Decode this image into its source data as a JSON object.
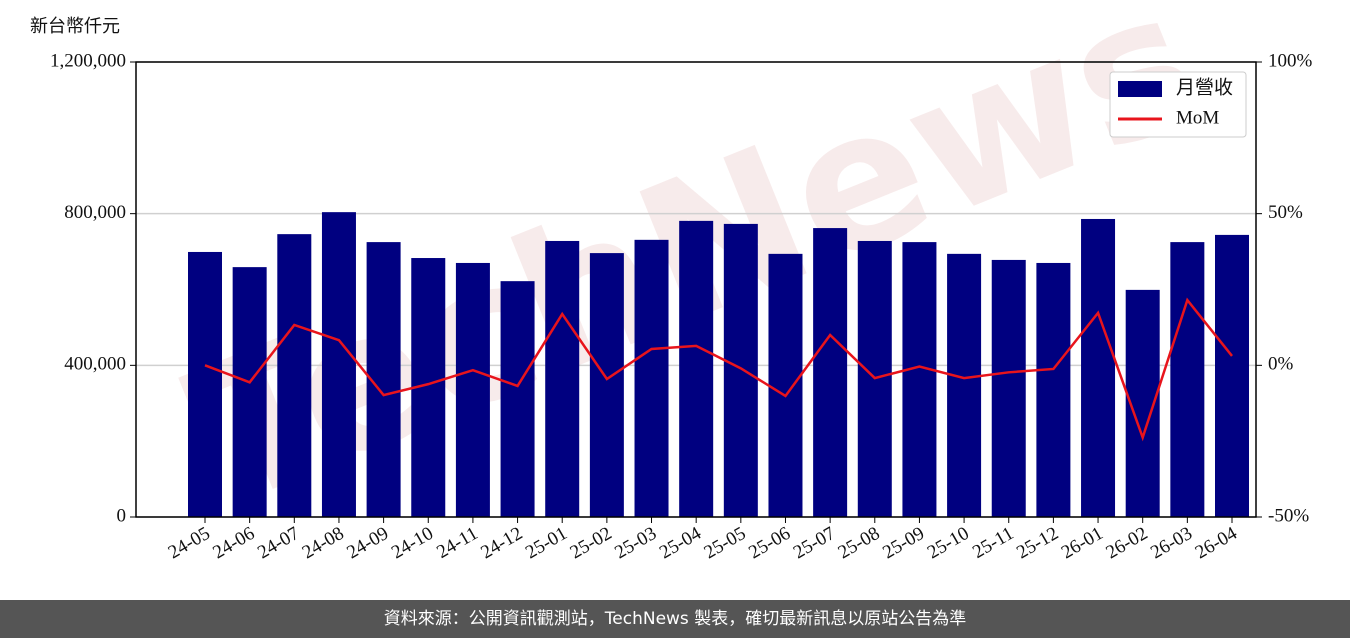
{
  "chart_data": {
    "type": "bar",
    "y_label": "新台幣仟元",
    "watermark": "TechNews",
    "categories": [
      "24-05",
      "24-06",
      "24-07",
      "24-08",
      "24-09",
      "24-10",
      "24-11",
      "24-12",
      "25-01",
      "25-02",
      "25-03",
      "25-04",
      "25-05",
      "25-06",
      "25-07",
      "25-08",
      "25-09",
      "25-10",
      "25-11",
      "25-12",
      "26-01",
      "26-02",
      "26-03",
      "26-04"
    ],
    "series": [
      {
        "name": "月營收",
        "type": "bar",
        "color": "#000080",
        "values": [
          699000,
          659000,
          746000,
          804000,
          725000,
          683000,
          670000,
          622000,
          728000,
          696000,
          731000,
          781000,
          773000,
          694000,
          762000,
          728000,
          725000,
          694000,
          678000,
          670000,
          786000,
          599000,
          725000,
          744000
        ]
      },
      {
        "name": "MoM",
        "type": "line",
        "axis": "y2",
        "color": "#e8141c",
        "values": [
          0,
          -5.6,
          13.3,
          8.3,
          -9.8,
          -6.2,
          -1.6,
          -6.8,
          16.9,
          -4.5,
          5.4,
          6.4,
          -1.0,
          -10.1,
          10.0,
          -4.2,
          -0.4,
          -4.2,
          -2.3,
          -1.2,
          17.3,
          -23.8,
          21.5,
          3.1
        ]
      }
    ],
    "ylim": [
      0,
      1200000
    ],
    "yticks": [
      0,
      {
        "value": 400000,
        "label": "400,000"
      },
      {
        "value": 800000,
        "label": "800,000"
      },
      {
        "value": 1200000,
        "label": "1,200,000"
      }
    ],
    "y2lim": [
      -50,
      100
    ],
    "y2ticks": [
      {
        "value": -50,
        "label": "-50%"
      },
      {
        "value": 0,
        "label": "0%"
      },
      {
        "value": 50,
        "label": "50%"
      },
      {
        "value": 100,
        "label": "100%"
      }
    ],
    "grid": true,
    "legend": "upper-right",
    "footer": "資料來源：公開資訊觀測站，TechNews 製表，確切最新訊息以原站公告為準"
  }
}
